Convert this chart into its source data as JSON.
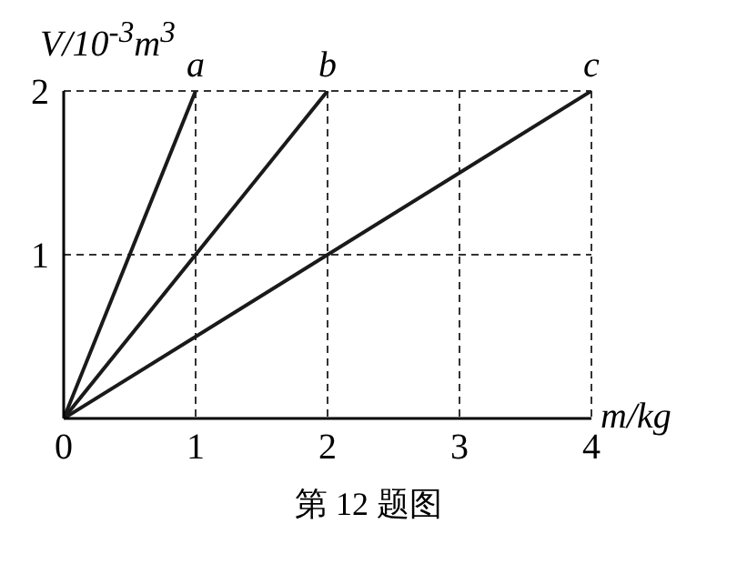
{
  "chart_data": {
    "type": "line",
    "xlabel": "m/kg",
    "ylabel": "V/10$^{-3}$m$^{3}$",
    "series": [
      {
        "name": "a",
        "color": "#1a1a1a",
        "x": [
          0,
          1
        ],
        "values": [
          0,
          2
        ]
      },
      {
        "name": "b",
        "color": "#1a1a1a",
        "x": [
          0,
          2
        ],
        "values": [
          0,
          2
        ]
      },
      {
        "name": "c",
        "color": "#1a1a1a",
        "x": [
          0,
          4
        ],
        "values": [
          0,
          2
        ]
      }
    ],
    "xlim": [
      0,
      4
    ],
    "ylim": [
      0,
      2
    ],
    "xticks": [
      0,
      1,
      2,
      3,
      4
    ],
    "yticks": [
      {
        "value": 0,
        "label": null
      },
      1,
      2
    ],
    "grid": true,
    "marker": "none",
    "line_style": "solid",
    "annotations": [
      "第 12 题图"
    ]
  }
}
